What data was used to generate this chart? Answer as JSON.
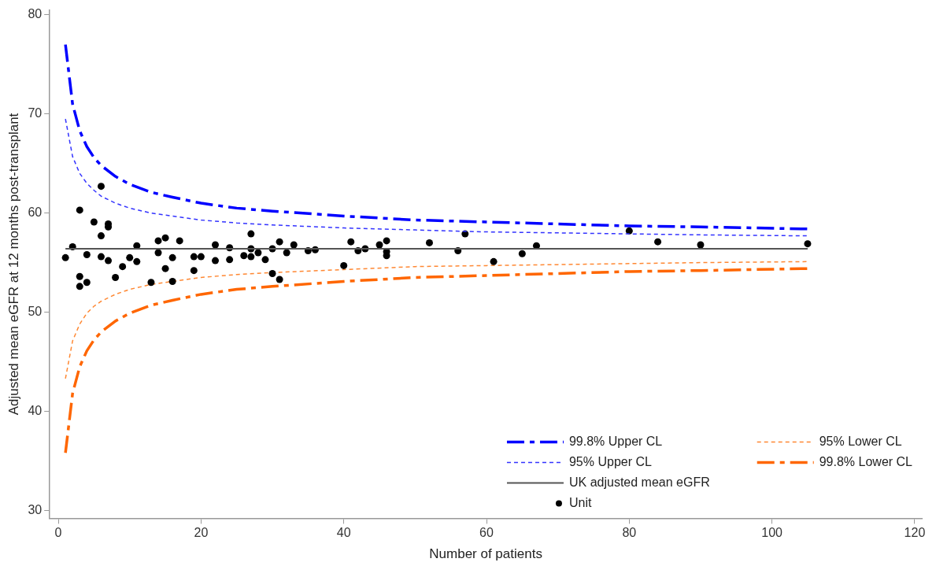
{
  "chart_data": {
    "type": "line",
    "xlabel": "Number of patients",
    "ylabel": "Adjusted mean eGFR at 12 months post-transplant",
    "xlim": [
      -1.2,
      121
    ],
    "xticks": [
      0,
      20,
      40,
      60,
      80,
      100,
      120
    ],
    "ylim": [
      29.2,
      80.5
    ],
    "yticks": [
      30,
      40,
      50,
      60,
      70,
      80
    ],
    "grid": false,
    "legend": "bottom right",
    "marker": "none",
    "x": [
      1,
      2,
      3,
      4,
      5,
      6,
      8,
      10,
      13,
      16,
      20,
      25,
      30,
      40,
      50,
      60,
      70,
      80,
      90,
      105
    ],
    "series": [
      {
        "name": "99.8% Upper CL",
        "color": "#0000ff",
        "line_style": "dashed",
        "values": [
          77.0,
          71.0,
          68.3,
          66.7,
          65.6,
          64.8,
          63.7,
          62.9,
          62.1,
          61.6,
          61.0,
          60.5,
          60.2,
          59.7,
          59.3,
          59.1,
          58.9,
          58.7,
          58.6,
          58.4
        ]
      },
      {
        "name": "95% Upper CL",
        "color": "#3333ff",
        "line_style": "dotted",
        "values": [
          69.5,
          65.7,
          64.0,
          63.0,
          62.3,
          61.7,
          61.0,
          60.5,
          60.0,
          59.7,
          59.3,
          59.0,
          58.8,
          58.5,
          58.3,
          58.1,
          58.0,
          57.9,
          57.8,
          57.7
        ]
      },
      {
        "name": "UK adjusted mean eGFR",
        "color": "#555555",
        "line_style": "solid",
        "x": [
          1,
          105
        ],
        "values": [
          56.4,
          56.4
        ]
      },
      {
        "name": "Unit",
        "type": "scatter",
        "marker": "circle",
        "color": "#000000",
        "x": [
          1,
          2,
          3,
          3,
          3,
          4,
          4,
          5,
          6,
          6,
          6,
          7,
          7,
          7,
          8,
          9,
          10,
          11,
          11,
          13,
          14,
          14,
          15,
          15,
          16,
          16,
          17,
          19,
          19,
          20,
          22,
          22,
          24,
          24,
          26,
          27,
          27,
          27,
          28,
          29,
          30,
          30,
          31,
          31,
          32,
          33,
          35,
          36,
          40,
          41,
          42,
          43,
          45,
          46,
          46,
          46,
          52,
          56,
          57,
          61,
          65,
          67,
          80,
          84,
          90,
          105
        ],
        "values": [
          55.5,
          56.6,
          60.3,
          53.6,
          52.6,
          55.8,
          53.0,
          59.1,
          62.7,
          57.7,
          55.6,
          58.9,
          58.6,
          55.2,
          53.5,
          54.6,
          55.5,
          56.7,
          55.1,
          53.0,
          57.2,
          56.0,
          57.5,
          54.4,
          55.5,
          53.1,
          57.2,
          54.2,
          55.6,
          55.6,
          56.8,
          55.2,
          56.5,
          55.3,
          55.7,
          57.9,
          56.4,
          55.6,
          56.0,
          55.3,
          53.9,
          56.4,
          57.1,
          53.3,
          56.0,
          56.8,
          56.2,
          56.3,
          54.7,
          57.1,
          56.2,
          56.4,
          56.8,
          57.2,
          56.1,
          55.7,
          57.0,
          56.2,
          57.9,
          55.1,
          55.9,
          56.7,
          58.2,
          57.1,
          56.8,
          56.9
        ]
      },
      {
        "name": "95% Lower CL",
        "color": "#ff8833",
        "line_style": "dotted",
        "values": [
          43.3,
          47.1,
          48.8,
          49.9,
          50.6,
          51.1,
          51.8,
          52.3,
          52.8,
          53.1,
          53.5,
          53.8,
          54.0,
          54.3,
          54.6,
          54.7,
          54.8,
          54.9,
          55.0,
          55.1
        ]
      },
      {
        "name": "99.8% Lower CL",
        "color": "#ff6600",
        "line_style": "dashed",
        "values": [
          35.8,
          41.8,
          44.5,
          46.1,
          47.2,
          48.0,
          49.1,
          49.9,
          50.7,
          51.2,
          51.8,
          52.3,
          52.6,
          53.1,
          53.5,
          53.7,
          53.9,
          54.1,
          54.2,
          54.4
        ]
      }
    ]
  }
}
